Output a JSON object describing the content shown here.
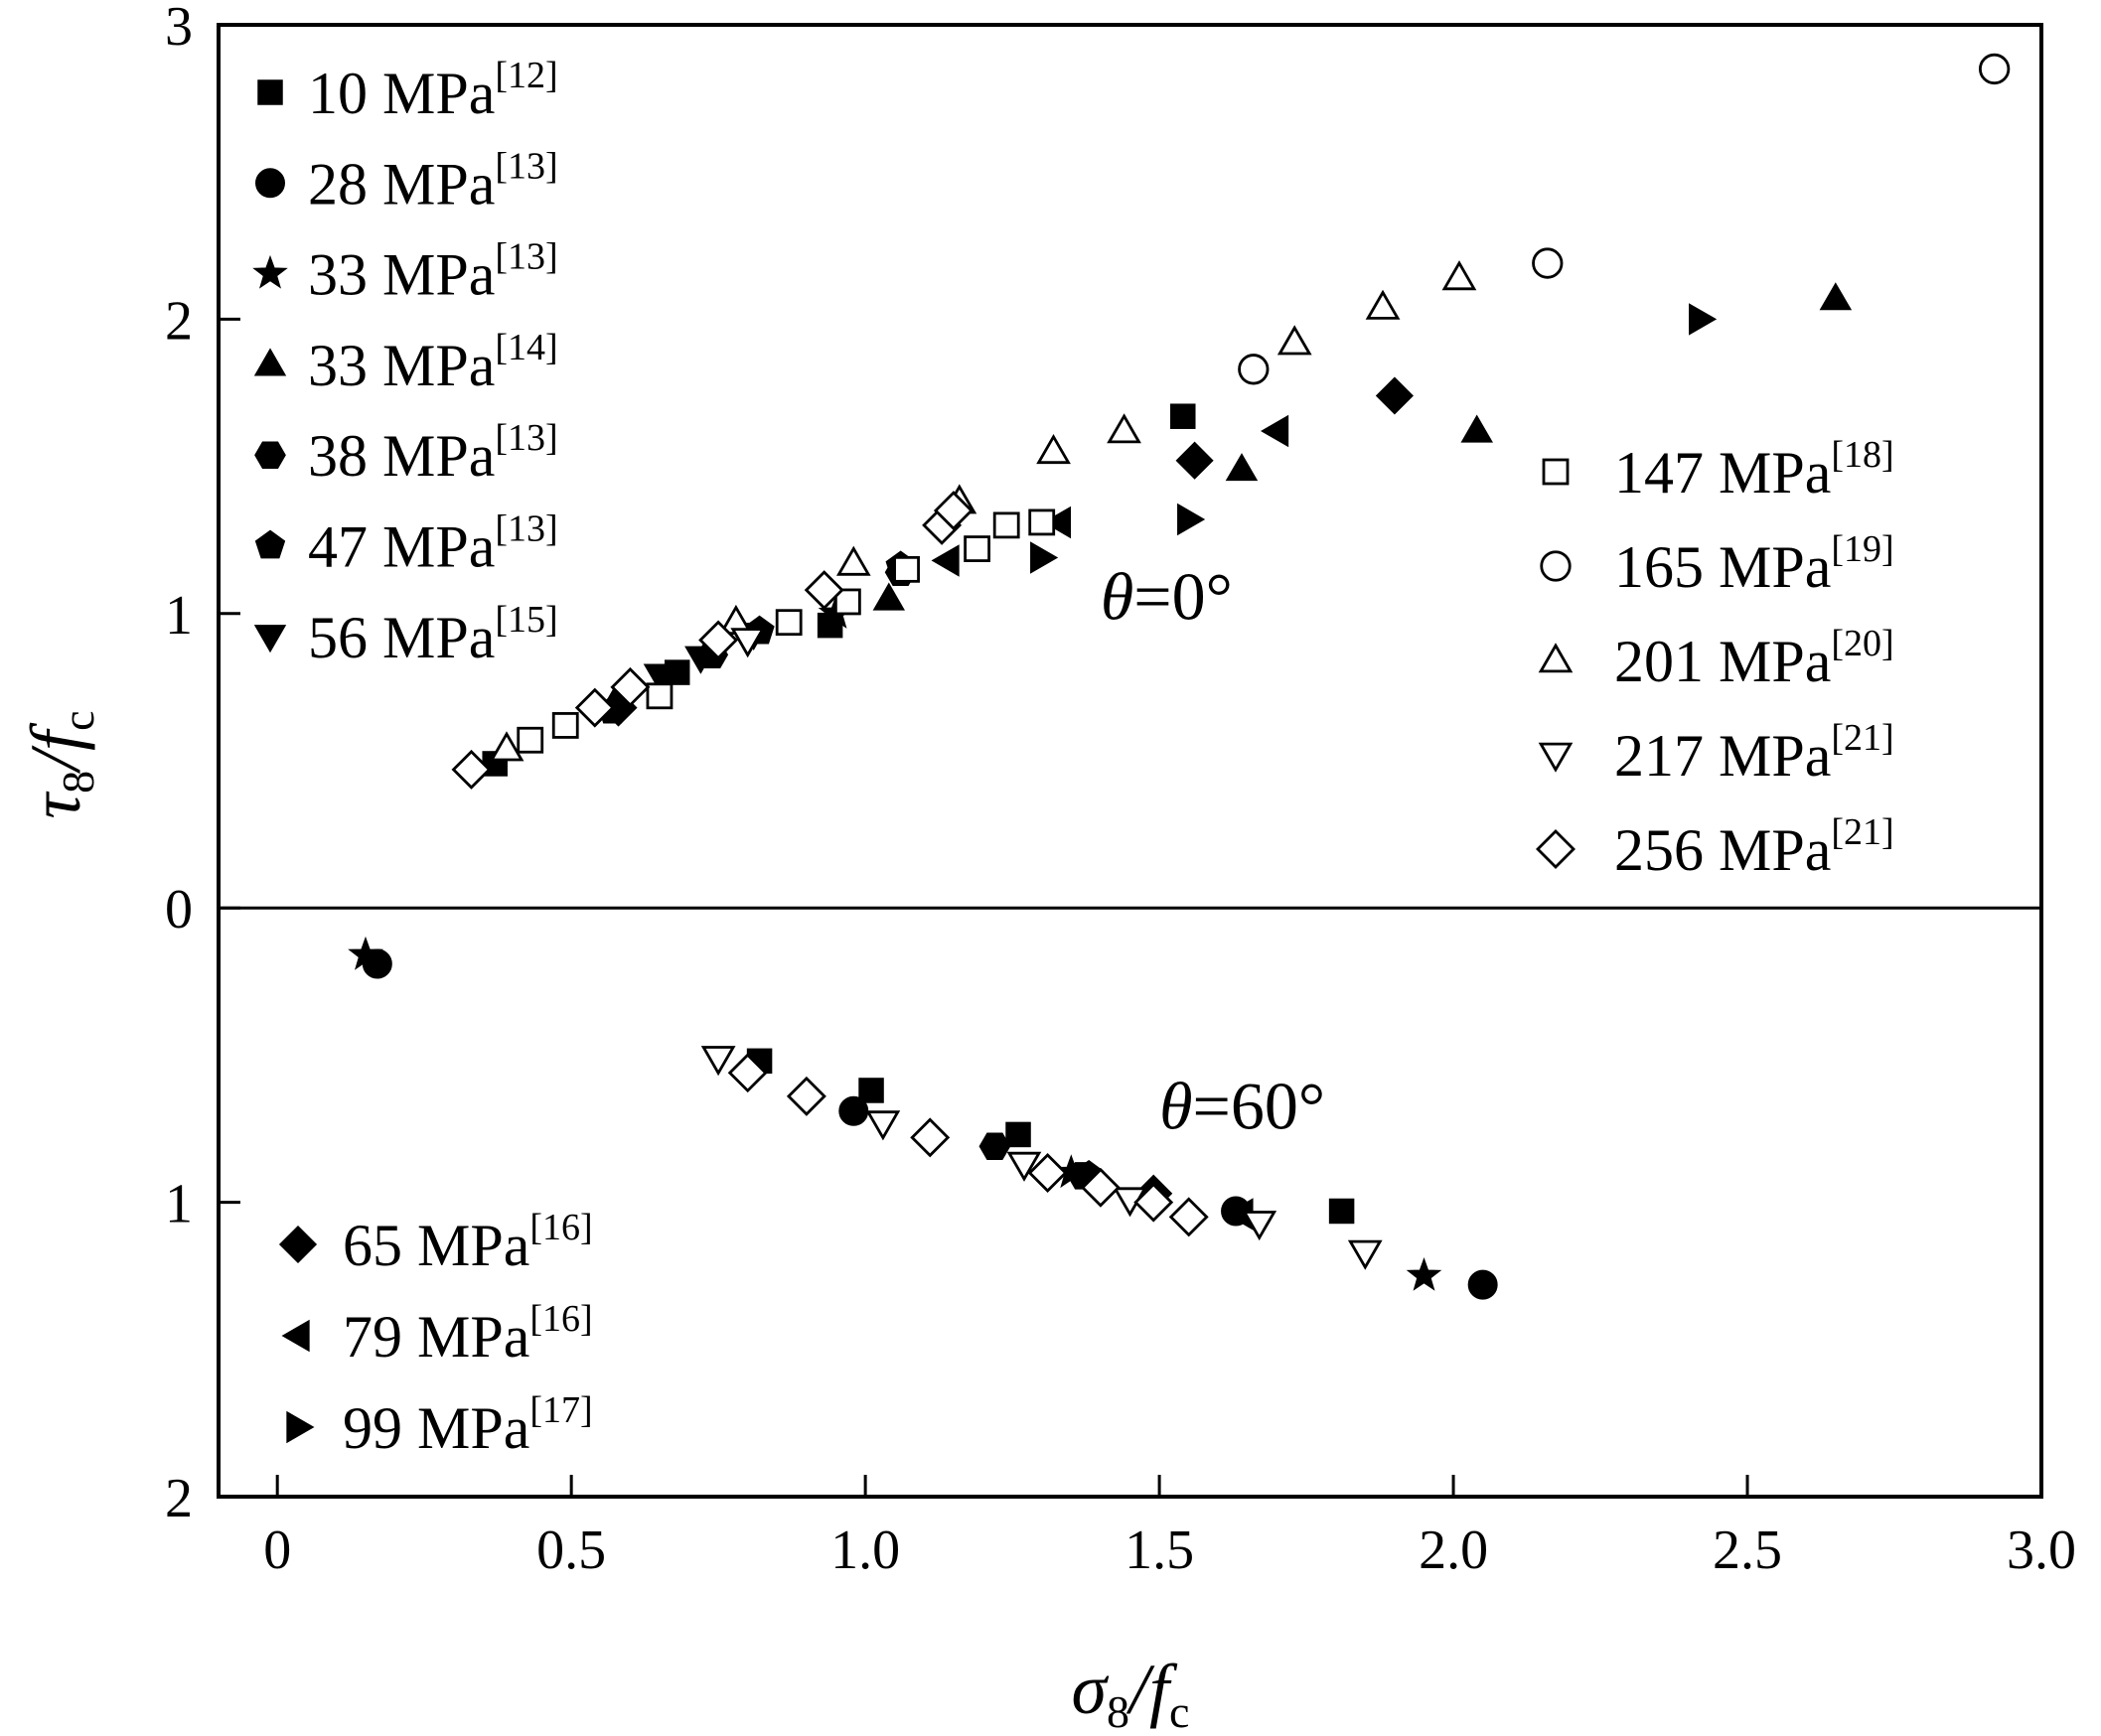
{
  "chart_data": {
    "type": "scatter",
    "x_axis": {
      "label_main": "σ",
      "label_sub": "8",
      "label_div": "/f",
      "label_sub2": "c",
      "range": [
        -0.1,
        3.0
      ],
      "ticks": [
        {
          "value": 0,
          "label": "0"
        },
        {
          "value": 0.5,
          "label": "0.5"
        },
        {
          "value": 1.0,
          "label": "1.0"
        },
        {
          "value": 1.5,
          "label": "1.5"
        },
        {
          "value": 2.0,
          "label": "2.0"
        },
        {
          "value": 2.5,
          "label": "2.5"
        },
        {
          "value": 3.0,
          "label": "3.0"
        }
      ]
    },
    "y_axis": {
      "label_main": "τ",
      "label_sub": "8",
      "label_div": "/f",
      "label_sub2": "c",
      "range": [
        -2.0,
        3.0
      ],
      "ticks": [
        {
          "value": 3,
          "label": "3"
        },
        {
          "value": 2,
          "label": "2"
        },
        {
          "value": 1,
          "label": "1"
        },
        {
          "value": 0,
          "label": "0"
        },
        {
          "value": -1,
          "label": "1"
        },
        {
          "value": -2,
          "label": "2"
        }
      ],
      "zero_line": true
    },
    "annotations": [
      {
        "greek": "θ",
        "text": "=0°",
        "x": 1.4,
        "y": 0.98
      },
      {
        "greek": "θ",
        "text": "=60°",
        "x": 1.5,
        "y": -0.75
      }
    ],
    "legend_groups": [
      {
        "position": "top-left",
        "entries": [
          0,
          1,
          2,
          3,
          4,
          5,
          6
        ]
      },
      {
        "position": "right",
        "entries": [
          10,
          11,
          12,
          13,
          14
        ]
      },
      {
        "position": "bottom-left",
        "entries": [
          7,
          8,
          9
        ]
      }
    ],
    "series": [
      {
        "name": "10 MPa",
        "ref": "[12]",
        "marker": "square",
        "filled": true,
        "points": [
          [
            0.37,
            0.49
          ],
          [
            0.68,
            0.8
          ],
          [
            0.94,
            0.96
          ],
          [
            1.54,
            1.67
          ],
          [
            0.82,
            -0.52
          ],
          [
            1.01,
            -0.62
          ],
          [
            1.26,
            -0.77
          ],
          [
            1.81,
            -1.03
          ]
        ]
      },
      {
        "name": "28 MPa",
        "ref": "[13]",
        "marker": "circle",
        "filled": true,
        "points": [
          [
            0.17,
            -0.19
          ],
          [
            0.98,
            -0.69
          ],
          [
            1.63,
            -1.03
          ],
          [
            2.05,
            -1.28
          ]
        ]
      },
      {
        "name": "33 MPa",
        "ref": "[13]",
        "marker": "star",
        "filled": true,
        "points": [
          [
            0.15,
            -0.16
          ],
          [
            0.95,
            1.0
          ],
          [
            1.35,
            -0.9
          ],
          [
            1.95,
            -1.25
          ]
        ]
      },
      {
        "name": "33 MPa",
        "ref": "[14]",
        "marker": "triangle-up",
        "filled": true,
        "points": [
          [
            0.58,
            0.72
          ],
          [
            1.04,
            1.05
          ],
          [
            1.64,
            1.49
          ],
          [
            2.04,
            1.62
          ],
          [
            2.65,
            2.07
          ]
        ]
      },
      {
        "name": "38 MPa",
        "ref": "[13]",
        "marker": "hexagon",
        "filled": true,
        "points": [
          [
            0.74,
            0.86
          ],
          [
            1.06,
            1.14
          ],
          [
            1.22,
            -0.81
          ],
          [
            1.37,
            -0.91
          ]
        ]
      },
      {
        "name": "47 MPa",
        "ref": "[13]",
        "marker": "pentagon",
        "filled": true,
        "points": [
          [
            0.57,
            0.67
          ],
          [
            0.82,
            0.94
          ],
          [
            1.06,
            1.16
          ],
          [
            1.38,
            -0.91
          ]
        ]
      },
      {
        "name": "56 MPa",
        "ref": "[15]",
        "marker": "triangle-down",
        "filled": true,
        "points": [
          [
            0.65,
            0.79
          ],
          [
            0.72,
            0.85
          ],
          [
            0.81,
            0.93
          ]
        ]
      },
      {
        "name": "65 MPa",
        "ref": "[16]",
        "marker": "diamond",
        "filled": true,
        "points": [
          [
            0.58,
            0.68
          ],
          [
            1.56,
            1.52
          ],
          [
            1.9,
            1.74
          ],
          [
            1.49,
            -0.97
          ]
        ]
      },
      {
        "name": "79 MPa",
        "ref": "[16]",
        "marker": "triangle-left",
        "filled": true,
        "points": [
          [
            1.14,
            1.18
          ],
          [
            1.33,
            1.31
          ],
          [
            1.7,
            1.62
          ],
          [
            1.64,
            -1.04
          ]
        ]
      },
      {
        "name": "99 MPa",
        "ref": "[17]",
        "marker": "triangle-right",
        "filled": true,
        "points": [
          [
            1.3,
            1.19
          ],
          [
            1.55,
            1.32
          ],
          [
            2.42,
            2.0
          ]
        ]
      },
      {
        "name": "147 MPa",
        "ref": "[18]",
        "marker": "square",
        "filled": false,
        "points": [
          [
            0.43,
            0.57
          ],
          [
            0.49,
            0.62
          ],
          [
            0.65,
            0.72
          ],
          [
            0.87,
            0.97
          ],
          [
            0.97,
            1.04
          ],
          [
            1.07,
            1.15
          ],
          [
            1.19,
            1.22
          ],
          [
            1.24,
            1.3
          ],
          [
            1.3,
            1.31
          ]
        ]
      },
      {
        "name": "165 MPa",
        "ref": "[19]",
        "marker": "circle",
        "filled": false,
        "points": [
          [
            1.66,
            1.83
          ],
          [
            2.16,
            2.19
          ],
          [
            2.92,
            2.85
          ]
        ]
      },
      {
        "name": "201 MPa",
        "ref": "[20]",
        "marker": "triangle-up",
        "filled": false,
        "points": [
          [
            0.39,
            0.54
          ],
          [
            0.78,
            0.97
          ],
          [
            0.98,
            1.17
          ],
          [
            1.16,
            1.38
          ],
          [
            1.32,
            1.55
          ],
          [
            1.44,
            1.62
          ],
          [
            1.73,
            1.92
          ],
          [
            1.88,
            2.04
          ],
          [
            2.01,
            2.14
          ]
        ]
      },
      {
        "name": "217 MPa",
        "ref": "[21]",
        "marker": "triangle-down",
        "filled": false,
        "points": [
          [
            0.75,
            -0.51
          ],
          [
            0.8,
            0.91
          ],
          [
            1.03,
            -0.73
          ],
          [
            1.27,
            -0.87
          ],
          [
            1.45,
            -0.99
          ],
          [
            1.67,
            -1.07
          ],
          [
            1.85,
            -1.17
          ]
        ]
      },
      {
        "name": "256 MPa",
        "ref": "[21]",
        "marker": "diamond",
        "filled": false,
        "points": [
          [
            0.33,
            0.47
          ],
          [
            0.54,
            0.68
          ],
          [
            0.6,
            0.75
          ],
          [
            0.75,
            0.91
          ],
          [
            0.93,
            1.08
          ],
          [
            1.13,
            1.3
          ],
          [
            1.15,
            1.35
          ],
          [
            0.8,
            -0.56
          ],
          [
            0.9,
            -0.64
          ],
          [
            1.11,
            -0.78
          ],
          [
            1.31,
            -0.9
          ],
          [
            1.4,
            -0.95
          ],
          [
            1.49,
            -1.0
          ],
          [
            1.55,
            -1.05
          ]
        ]
      }
    ]
  }
}
